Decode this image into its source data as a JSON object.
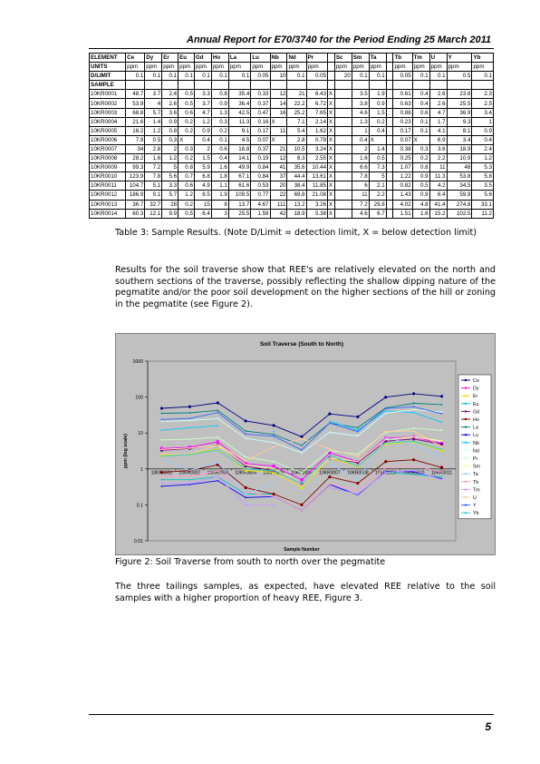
{
  "header": {
    "title": "Annual Report for E70/3740 for the Period Ending 25 March 2011"
  },
  "table": {
    "columns": [
      "ELEMENT",
      "Ce",
      "Dy",
      "Er",
      "Eu",
      "Gd",
      "Ho",
      "La",
      "Lu",
      "Nb",
      "Nd",
      "Pr",
      "",
      "Sc",
      "Sm",
      "Ta",
      "",
      "Tb",
      "Tm",
      "U",
      "Y",
      "Yb"
    ],
    "units": [
      "UNITS",
      "ppm",
      "ppm",
      "ppm",
      "ppm",
      "ppm",
      "ppm",
      "ppm",
      "ppm",
      "ppm",
      "ppm",
      "ppm",
      "",
      "ppm",
      "ppm",
      "ppm",
      "",
      "ppm",
      "ppm",
      "ppm",
      "ppm",
      "ppm"
    ],
    "dlimit": [
      "D/LIMIT",
      "0.1",
      "0.1",
      "0.1",
      "0.1",
      "0.1",
      "0.1",
      "0.1",
      "0.05",
      "10",
      "0.1",
      "0.05",
      "",
      "20",
      "0.1",
      "0.1",
      "",
      "0.05",
      "0.1",
      "0.1",
      "0.5",
      "0.1"
    ],
    "sample_label": "SAMPLE",
    "rows": [
      [
        "10KR0001",
        "48.7",
        "3.7",
        "2.4",
        "0.5",
        "3.3",
        "0.8",
        "35.4",
        "0.33",
        "12",
        "21",
        "6.43",
        "X",
        "",
        "3.5",
        "1.9",
        "",
        "0.61",
        "0.4",
        "2.6",
        "23.8",
        "2.3"
      ],
      [
        "10KR0002",
        "53.9",
        "4",
        "2.6",
        "0.5",
        "3.7",
        "0.9",
        "36.4",
        "0.37",
        "14",
        "22.2",
        "6.72",
        "X",
        "",
        "3.8",
        "0.9",
        "",
        "0.63",
        "0.4",
        "2.6",
        "25.5",
        "2.5"
      ],
      [
        "10KR0003",
        "68.8",
        "5.7",
        "3.6",
        "0.6",
        "4.7",
        "1.3",
        "42.5",
        "0.47",
        "16",
        "25.2",
        "7.65",
        "X",
        "",
        "4.6",
        "1.5",
        "",
        "0.88",
        "0.6",
        "4.7",
        "36.9",
        "3.4"
      ],
      [
        "10KR0004",
        "21.6",
        "1.4",
        "0.9",
        "0.2",
        "1.2",
        "0.3",
        "11.3",
        "0.16",
        "X",
        "7.1",
        "2.14",
        "X",
        "",
        "1.3",
        "0.2",
        "",
        "0.23",
        "0.1",
        "1.7",
        "9.3",
        "1"
      ],
      [
        "10KR0005",
        "16.2",
        "1.2",
        "0.8",
        "0.2",
        "0.9",
        "0.2",
        "9.1",
        "0.17",
        "11",
        "5.4",
        "1.62",
        "X",
        "",
        "1",
        "0.4",
        "",
        "0.17",
        "0.1",
        "4.1",
        "8.1",
        "0.9"
      ],
      [
        "10KR0006",
        "7.9",
        "0.5",
        "0.3",
        "X",
        "0.4",
        "0.1",
        "4.5",
        "0.07",
        "X",
        "2.8",
        "0.79",
        "X",
        "",
        "0.4",
        "X",
        "",
        "0.07",
        "X",
        "6.9",
        "3.4",
        "0.4"
      ],
      [
        "10KR0007",
        "34",
        "2.8",
        "2",
        "0.3",
        "2",
        "0.6",
        "18.8",
        "0.37",
        "21",
        "10.5",
        "3.24",
        "X",
        "",
        "2",
        "1.4",
        "",
        "0.38",
        "0.3",
        "3.6",
        "18.9",
        "2.4"
      ],
      [
        "10KR0008",
        "28.2",
        "1.6",
        "1.2",
        "0.2",
        "1.5",
        "0.4",
        "14.1",
        "0.19",
        "12",
        "8.3",
        "2.55",
        "X",
        "",
        "1.6",
        "0.5",
        "",
        "0.25",
        "0.2",
        "2.2",
        "10.9",
        "1.2"
      ],
      [
        "10KR0009",
        "99.3",
        "7.2",
        "5",
        "0.8",
        "5.9",
        "1.6",
        "49.9",
        "0.84",
        "41",
        "35.6",
        "10.44",
        "X",
        "",
        "6.6",
        "7.3",
        "",
        "1.07",
        "0.8",
        "11",
        "48",
        "5.3"
      ],
      [
        "10KR0010",
        "123.9",
        "7.8",
        "5.6",
        "0.7",
        "6.8",
        "1.8",
        "67.1",
        "0.84",
        "37",
        "44.4",
        "13.61",
        "X",
        "",
        "7.8",
        "5",
        "",
        "1.22",
        "0.9",
        "11.3",
        "53.8",
        "5.8"
      ],
      [
        "10KR0011",
        "104.7",
        "5.1",
        "3.3",
        "0.6",
        "4.9",
        "1.1",
        "61.6",
        "0.53",
        "20",
        "38.4",
        "11.85",
        "X",
        "",
        "6",
        "2.1",
        "",
        "0.82",
        "0.5",
        "4.2",
        "34.5",
        "3.5"
      ],
      [
        "10KR0012",
        "186.9",
        "9.1",
        "5.7",
        "1.2",
        "8.5",
        "1.9",
        "109.5",
        "0.77",
        "22",
        "69.8",
        "21.08",
        "X",
        "",
        "11",
        "2.2",
        "",
        "1.43",
        "0.9",
        "6.4",
        "59.9",
        "5.6"
      ],
      [
        "10KR0013",
        "36.7",
        "32.7",
        "28",
        "0.2",
        "15",
        "8",
        "13.7",
        "4.67",
        "111",
        "13.2",
        "3.26",
        "X",
        "",
        "7.2",
        "29.8",
        "",
        "4.02",
        "4.8",
        "41.4",
        "274.8",
        "33.1"
      ],
      [
        "10KR0014",
        "60.3",
        "12.1",
        "9.9",
        "0.5",
        "6.4",
        "3",
        "25.5",
        "1.59",
        "42",
        "18.9",
        "5.38",
        "X",
        "",
        "4.6",
        "6.7",
        "",
        "1.51",
        "1.6",
        "15.2",
        "102.5",
        "11.2"
      ]
    ]
  },
  "table_caption": "Table 3: Sample Results. (Note D/Limit = detection limit, X = below detection limit)",
  "paragraph1": "Results for the soil traverse show that REE's are relatively elevated on the north and southern sections of the traverse, possibly reflecting the shallow dipping nature of the pegmatite and/or the poor soil development on the higher sections of the hill or zoning in the pegmatite (see Figure 2).",
  "figure_caption": "Figure 2: Soil Traverse from south to north over the pegmatite",
  "paragraph2": "The three tailings samples, as expected, have elevated REE relative to the soil samples with a higher proportion of heavy REE, Figure 3.",
  "page_number": "5",
  "chart_data": {
    "type": "line",
    "title": "Soil Traverse (South to North)",
    "xlabel": "Sample Number",
    "ylabel": "ppm (log scale)",
    "yscale": "log",
    "ylim": [
      0.01,
      1000
    ],
    "yticks": [
      "0.01",
      "0.1",
      "1",
      "10",
      "100",
      "1000"
    ],
    "grid": false,
    "legend_position": "right",
    "categories": [
      "10KR0001",
      "10KR0002",
      "10KR0003",
      "10KR0004",
      "10KR0005",
      "10KR0006",
      "10KR0007",
      "10KR0008",
      "10KR0009",
      "10KR0010",
      "10KR0011"
    ],
    "series": [
      {
        "name": "Ce",
        "color": "#000080",
        "values": [
          48.7,
          53.9,
          68.8,
          21.6,
          16.2,
          7.9,
          34,
          28.2,
          99.3,
          123.9,
          104.7
        ]
      },
      {
        "name": "Dy",
        "color": "#ff00ff",
        "values": [
          3.7,
          4,
          5.7,
          1.4,
          1.2,
          0.5,
          2.8,
          1.6,
          7.2,
          7.8,
          5.1
        ]
      },
      {
        "name": "Er",
        "color": "#e6e600",
        "values": [
          2.4,
          2.6,
          3.6,
          0.9,
          0.8,
          0.3,
          2,
          1.2,
          5,
          5.6,
          3.3
        ]
      },
      {
        "name": "Eu",
        "color": "#00c8c8",
        "values": [
          0.5,
          0.5,
          0.6,
          0.2,
          0.2,
          null,
          0.3,
          0.2,
          0.8,
          0.7,
          0.6
        ]
      },
      {
        "name": "Gd",
        "color": "#800080",
        "values": [
          3.3,
          3.7,
          4.7,
          1.2,
          0.9,
          0.4,
          2,
          1.5,
          5.9,
          6.8,
          4.9
        ]
      },
      {
        "name": "Ho",
        "color": "#800000",
        "values": [
          0.8,
          0.9,
          1.3,
          0.3,
          0.2,
          0.1,
          0.6,
          0.4,
          1.6,
          1.8,
          1.1
        ]
      },
      {
        "name": "La",
        "color": "#008080",
        "values": [
          35.4,
          36.4,
          42.5,
          11.3,
          9.1,
          4.5,
          18.8,
          14.1,
          49.9,
          67.1,
          61.6
        ]
      },
      {
        "name": "Lu",
        "color": "#0000ff",
        "values": [
          0.33,
          0.37,
          0.47,
          0.16,
          0.17,
          0.07,
          0.37,
          0.19,
          0.84,
          0.84,
          0.53
        ]
      },
      {
        "name": "Nb",
        "color": "#00ccff",
        "values": [
          12,
          14,
          16,
          null,
          11,
          null,
          21,
          12,
          41,
          37,
          20
        ]
      },
      {
        "name": "Nd",
        "color": "#ccffff",
        "values": [
          21,
          22.2,
          25.2,
          7.1,
          5.4,
          2.8,
          10.5,
          8.3,
          35.6,
          44.4,
          38.4
        ]
      },
      {
        "name": "Pr",
        "color": "#ccffcc",
        "values": [
          6.43,
          6.72,
          7.65,
          2.14,
          1.62,
          0.79,
          3.24,
          2.55,
          10.44,
          13.61,
          11.85
        ]
      },
      {
        "name": "Sm",
        "color": "#ffff99",
        "values": [
          3.5,
          3.8,
          4.6,
          1.3,
          1,
          0.4,
          2,
          1.6,
          6.6,
          7.8,
          6
        ]
      },
      {
        "name": "Ta",
        "color": "#99ccff",
        "values": [
          1.9,
          0.9,
          1.5,
          0.2,
          0.4,
          null,
          1.4,
          0.5,
          7.3,
          5,
          2.1
        ]
      },
      {
        "name": "Tb",
        "color": "#ff99cc",
        "values": [
          0.61,
          0.63,
          0.88,
          0.23,
          0.17,
          0.07,
          0.38,
          0.25,
          1.07,
          1.22,
          0.82
        ]
      },
      {
        "name": "Tm",
        "color": "#cc99ff",
        "values": [
          0.4,
          0.4,
          0.6,
          0.1,
          0.1,
          null,
          0.3,
          0.2,
          0.8,
          0.9,
          0.5
        ]
      },
      {
        "name": "U",
        "color": "#ffcc99",
        "values": [
          2.6,
          2.6,
          4.7,
          1.7,
          4.1,
          6.9,
          3.6,
          2.2,
          11,
          11.3,
          4.2
        ]
      },
      {
        "name": "Y",
        "color": "#3366ff",
        "values": [
          23.8,
          25.5,
          36.9,
          9.3,
          8.1,
          3.4,
          18.9,
          10.9,
          48,
          53.8,
          34.5
        ]
      },
      {
        "name": "Yb",
        "color": "#33cccc",
        "values": [
          2.3,
          2.5,
          3.4,
          1,
          0.9,
          0.4,
          2.4,
          1.2,
          5.3,
          5.8,
          3.5
        ]
      }
    ]
  }
}
